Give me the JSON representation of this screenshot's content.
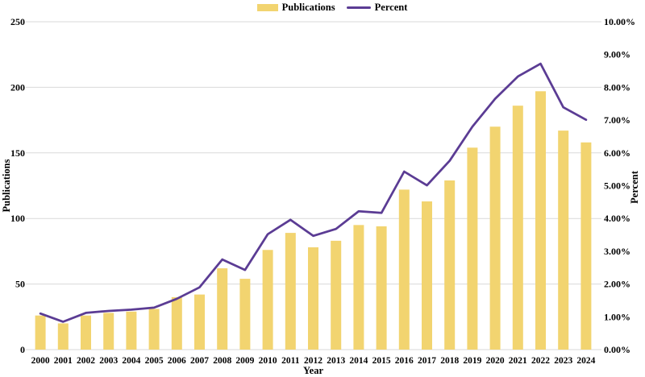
{
  "colors": {
    "background": "#ffffff",
    "bar": "#f2d470",
    "line": "#5b3c94",
    "gridline": "#d9d9d9",
    "text": "#000000"
  },
  "legend": {
    "items": [
      {
        "label": "Publications",
        "swatch": "bar-swatch-icon",
        "color": "#f2d470"
      },
      {
        "label": "Percent",
        "swatch": "line-swatch-icon",
        "color": "#5b3c94"
      }
    ]
  },
  "chart_data": {
    "type": "bar+line",
    "title": "",
    "categories": [
      "2000",
      "2001",
      "2002",
      "2003",
      "2004",
      "2005",
      "2006",
      "2007",
      "2008",
      "2009",
      "2010",
      "2011",
      "2012",
      "2013",
      "2014",
      "2015",
      "2016",
      "2017",
      "2018",
      "2019",
      "2020",
      "2021",
      "2022",
      "2023",
      "2024"
    ],
    "series": [
      {
        "name": "Publications",
        "type": "bar",
        "axis": "left",
        "color": "#f2d470",
        "values": [
          26,
          20,
          26,
          28,
          29,
          31,
          40,
          42,
          62,
          54,
          76,
          89,
          78,
          83,
          95,
          94,
          122,
          113,
          129,
          154,
          170,
          186,
          197,
          167,
          158
        ]
      },
      {
        "name": "Percent",
        "type": "line",
        "axis": "right",
        "color": "#5b3c94",
        "unit": "%",
        "values": [
          1.1,
          0.85,
          1.12,
          1.18,
          1.22,
          1.28,
          1.55,
          1.9,
          2.75,
          2.43,
          3.52,
          3.96,
          3.47,
          3.68,
          4.22,
          4.17,
          5.43,
          5.01,
          5.76,
          6.8,
          7.65,
          8.33,
          8.72,
          7.39,
          7.01
        ]
      }
    ],
    "left_axis": {
      "title": "Publications",
      "min": 0,
      "max": 250,
      "tick_interval": 50,
      "tick_labels": [
        "0",
        "50",
        "100",
        "150",
        "200",
        "250"
      ]
    },
    "right_axis": {
      "title": "Percent",
      "min": 0,
      "max": 10,
      "tick_interval": 1,
      "tick_labels": [
        "0.00%",
        "1.00%",
        "2.00%",
        "3.00%",
        "4.00%",
        "5.00%",
        "6.00%",
        "7.00%",
        "8.00%",
        "9.00%",
        "10.00%"
      ]
    },
    "x_axis": {
      "title": "Year"
    },
    "gridlines": "horizontal",
    "legend_position": "top-center"
  }
}
